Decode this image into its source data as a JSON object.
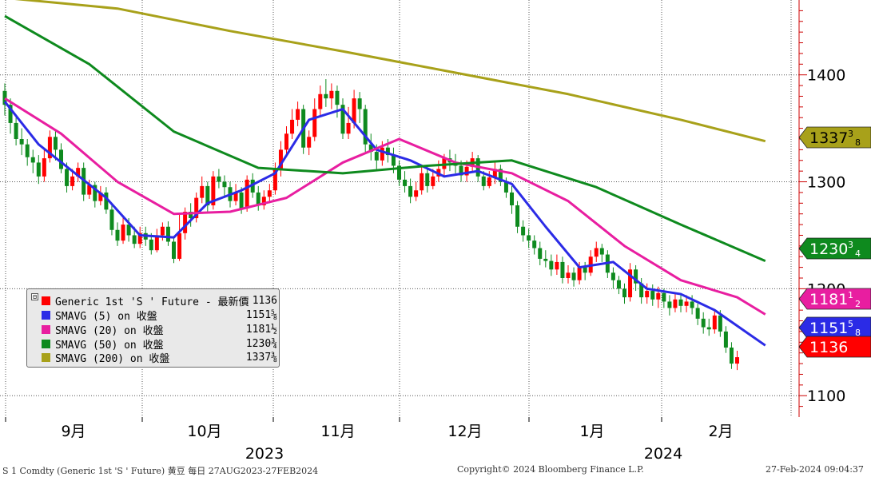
{
  "chart_data": {
    "type": "candlestick",
    "title": "",
    "x_labels": [
      "9月",
      "10月",
      "11月",
      "12月",
      "1月",
      "2月"
    ],
    "year_labels": [
      "2023",
      "2024"
    ],
    "y_ticks": [
      "1400",
      "1300",
      "1200",
      "1100"
    ],
    "y_tick_values": [
      1400,
      1300,
      1200,
      1100
    ],
    "ylim": [
      1080,
      1470
    ],
    "grid": true,
    "legend_position": "bottom-left",
    "candles": [
      [
        1385,
        1372,
        1392,
        1362
      ],
      [
        1372,
        1355,
        1378,
        1345
      ],
      [
        1355,
        1340,
        1360,
        1334
      ],
      [
        1340,
        1335,
        1350,
        1325
      ],
      [
        1335,
        1323,
        1340,
        1315
      ],
      [
        1323,
        1318,
        1330,
        1308
      ],
      [
        1318,
        1305,
        1325,
        1298
      ],
      [
        1305,
        1322,
        1330,
        1300
      ],
      [
        1322,
        1342,
        1348,
        1318
      ],
      [
        1342,
        1330,
        1348,
        1320
      ],
      [
        1330,
        1312,
        1336,
        1308
      ],
      [
        1312,
        1296,
        1318,
        1290
      ],
      [
        1296,
        1305,
        1312,
        1292
      ],
      [
        1305,
        1313,
        1318,
        1300
      ],
      [
        1313,
        1288,
        1318,
        1282
      ],
      [
        1288,
        1297,
        1302,
        1284
      ],
      [
        1297,
        1282,
        1300,
        1276
      ],
      [
        1282,
        1290,
        1296,
        1278
      ],
      [
        1290,
        1274,
        1295,
        1270
      ],
      [
        1274,
        1255,
        1279,
        1250
      ],
      [
        1255,
        1245,
        1262,
        1240
      ],
      [
        1245,
        1260,
        1268,
        1242
      ],
      [
        1260,
        1250,
        1266,
        1244
      ],
      [
        1250,
        1242,
        1258,
        1238
      ],
      [
        1242,
        1252,
        1258,
        1238
      ],
      [
        1252,
        1246,
        1258,
        1240
      ],
      [
        1246,
        1236,
        1252,
        1232
      ],
      [
        1236,
        1250,
        1256,
        1234
      ],
      [
        1250,
        1258,
        1262,
        1245
      ],
      [
        1258,
        1244,
        1263,
        1240
      ],
      [
        1244,
        1228,
        1248,
        1224
      ],
      [
        1228,
        1252,
        1270,
        1226
      ],
      [
        1252,
        1272,
        1276,
        1246
      ],
      [
        1272,
        1266,
        1280,
        1258
      ],
      [
        1266,
        1285,
        1290,
        1262
      ],
      [
        1285,
        1296,
        1305,
        1280
      ],
      [
        1296,
        1278,
        1300,
        1272
      ],
      [
        1278,
        1305,
        1310,
        1274
      ],
      [
        1305,
        1300,
        1312,
        1294
      ],
      [
        1300,
        1295,
        1306,
        1285
      ],
      [
        1295,
        1282,
        1300,
        1276
      ],
      [
        1282,
        1290,
        1298,
        1278
      ],
      [
        1290,
        1275,
        1295,
        1270
      ],
      [
        1275,
        1302,
        1306,
        1272
      ],
      [
        1302,
        1290,
        1308,
        1285
      ],
      [
        1290,
        1278,
        1296,
        1273
      ],
      [
        1278,
        1286,
        1292,
        1274
      ],
      [
        1286,
        1292,
        1298,
        1280
      ],
      [
        1292,
        1312,
        1318,
        1288
      ],
      [
        1312,
        1330,
        1338,
        1305
      ],
      [
        1330,
        1345,
        1352,
        1325
      ],
      [
        1345,
        1358,
        1368,
        1340
      ],
      [
        1358,
        1368,
        1375,
        1352
      ],
      [
        1368,
        1332,
        1372,
        1326
      ],
      [
        1332,
        1342,
        1348,
        1325
      ],
      [
        1342,
        1368,
        1378,
        1338
      ],
      [
        1368,
        1382,
        1390,
        1362
      ],
      [
        1382,
        1378,
        1396,
        1370
      ],
      [
        1378,
        1385,
        1392,
        1368
      ],
      [
        1385,
        1372,
        1390,
        1360
      ],
      [
        1372,
        1345,
        1378,
        1340
      ],
      [
        1345,
        1355,
        1370,
        1340
      ],
      [
        1355,
        1378,
        1386,
        1350
      ],
      [
        1378,
        1368,
        1384,
        1355
      ],
      [
        1368,
        1335,
        1372,
        1328
      ],
      [
        1335,
        1328,
        1345,
        1320
      ],
      [
        1328,
        1320,
        1335,
        1312
      ],
      [
        1320,
        1332,
        1338,
        1315
      ],
      [
        1332,
        1325,
        1340,
        1318
      ],
      [
        1325,
        1315,
        1332,
        1308
      ],
      [
        1315,
        1302,
        1320,
        1296
      ],
      [
        1302,
        1296,
        1310,
        1290
      ],
      [
        1296,
        1286,
        1303,
        1280
      ],
      [
        1286,
        1292,
        1300,
        1282
      ],
      [
        1292,
        1308,
        1315,
        1288
      ],
      [
        1308,
        1296,
        1312,
        1290
      ],
      [
        1296,
        1305,
        1312,
        1293
      ],
      [
        1305,
        1312,
        1320,
        1300
      ],
      [
        1312,
        1322,
        1326,
        1305
      ],
      [
        1322,
        1318,
        1330,
        1310
      ],
      [
        1318,
        1315,
        1326,
        1308
      ],
      [
        1315,
        1306,
        1320,
        1300
      ],
      [
        1306,
        1314,
        1320,
        1300
      ],
      [
        1314,
        1322,
        1328,
        1310
      ],
      [
        1322,
        1305,
        1325,
        1300
      ],
      [
        1305,
        1296,
        1310,
        1292
      ],
      [
        1296,
        1304,
        1310,
        1294
      ],
      [
        1304,
        1312,
        1318,
        1298
      ],
      [
        1312,
        1300,
        1316,
        1296
      ],
      [
        1300,
        1290,
        1304,
        1285
      ],
      [
        1290,
        1278,
        1296,
        1270
      ],
      [
        1278,
        1258,
        1282,
        1252
      ],
      [
        1258,
        1250,
        1264,
        1244
      ],
      [
        1250,
        1245,
        1256,
        1238
      ],
      [
        1245,
        1238,
        1250,
        1232
      ],
      [
        1238,
        1228,
        1244,
        1222
      ],
      [
        1228,
        1226,
        1236,
        1220
      ],
      [
        1226,
        1218,
        1232,
        1212
      ],
      [
        1218,
        1225,
        1232,
        1213
      ],
      [
        1225,
        1210,
        1230,
        1205
      ],
      [
        1210,
        1215,
        1222,
        1205
      ],
      [
        1215,
        1208,
        1220,
        1202
      ],
      [
        1208,
        1220,
        1225,
        1204
      ],
      [
        1220,
        1215,
        1225,
        1208
      ],
      [
        1215,
        1230,
        1236,
        1212
      ],
      [
        1230,
        1238,
        1244,
        1225
      ],
      [
        1238,
        1232,
        1242,
        1225
      ],
      [
        1232,
        1215,
        1236,
        1210
      ],
      [
        1215,
        1208,
        1220,
        1200
      ],
      [
        1208,
        1200,
        1212,
        1195
      ],
      [
        1200,
        1192,
        1205,
        1186
      ],
      [
        1192,
        1218,
        1224,
        1188
      ],
      [
        1218,
        1205,
        1222,
        1198
      ],
      [
        1205,
        1192,
        1210,
        1186
      ],
      [
        1192,
        1198,
        1205,
        1186
      ],
      [
        1198,
        1190,
        1204,
        1184
      ],
      [
        1190,
        1196,
        1202,
        1182
      ],
      [
        1196,
        1188,
        1200,
        1182
      ],
      [
        1188,
        1182,
        1194,
        1175
      ],
      [
        1182,
        1190,
        1196,
        1178
      ],
      [
        1190,
        1184,
        1196,
        1178
      ],
      [
        1184,
        1188,
        1194,
        1178
      ],
      [
        1188,
        1182,
        1194,
        1176
      ],
      [
        1182,
        1172,
        1186,
        1166
      ],
      [
        1172,
        1164,
        1178,
        1158
      ],
      [
        1164,
        1162,
        1172,
        1156
      ],
      [
        1162,
        1175,
        1180,
        1158
      ],
      [
        1175,
        1160,
        1180,
        1155
      ],
      [
        1160,
        1145,
        1165,
        1140
      ],
      [
        1145,
        1130,
        1150,
        1125
      ],
      [
        1130,
        1136,
        1142,
        1124
      ]
    ],
    "series": [
      {
        "name": "Generic 1st 'S ' Future - 最新價",
        "type": "candles",
        "last": "1136",
        "last_value": 1136,
        "color": "#ff0000"
      },
      {
        "name": "SMAVG (5)  on 收盤",
        "type": "line",
        "last": "1151⅝",
        "last_value": 1151.6,
        "color": "#2b2be6",
        "x": [
          0,
          6,
          12,
          18,
          24,
          30,
          36,
          42,
          48,
          54,
          60,
          66,
          72,
          78,
          84,
          90,
          96,
          102,
          108,
          114,
          120,
          126,
          132,
          135
        ],
        "values": [
          1375,
          1335,
          1310,
          1285,
          1250,
          1248,
          1280,
          1292,
          1308,
          1358,
          1368,
          1330,
          1320,
          1305,
          1310,
          1298,
          1258,
          1220,
          1225,
          1200,
          1195,
          1180,
          1158,
          1147
        ]
      },
      {
        "name": "SMAVG (20)  on 收盤",
        "type": "line",
        "last": "1181½",
        "last_value": 1181.5,
        "color": "#e81ea0",
        "x": [
          0,
          10,
          20,
          30,
          40,
          50,
          60,
          70,
          80,
          90,
          100,
          110,
          120,
          130,
          135
        ],
        "values": [
          1378,
          1345,
          1300,
          1270,
          1272,
          1285,
          1318,
          1340,
          1318,
          1308,
          1282,
          1240,
          1208,
          1192,
          1176
        ]
      },
      {
        "name": "SMAVG (50)  on 收盤",
        "type": "line",
        "last": "1230¾",
        "last_value": 1230.75,
        "color": "#0e8a1e",
        "x": [
          0,
          15,
          30,
          45,
          60,
          75,
          90,
          105,
          120,
          135
        ],
        "values": [
          1455,
          1410,
          1347,
          1313,
          1308,
          1315,
          1320,
          1295,
          1260,
          1226
        ]
      },
      {
        "name": "SMAVG (200)  on 收盤",
        "type": "line",
        "last": "1337⅜",
        "last_value": 1337.375,
        "color": "#a8a11a",
        "x": [
          0,
          20,
          40,
          60,
          80,
          100,
          120,
          135
        ],
        "values": [
          1472,
          1462,
          1441,
          1422,
          1402,
          1382,
          1358,
          1338
        ]
      }
    ],
    "price_tags": [
      {
        "label": "1337",
        "frac": "3",
        "denom": "8",
        "value": 1337.375,
        "bg": "#a8a11a",
        "fg": "#000000"
      },
      {
        "label": "1230",
        "frac": "3",
        "denom": "4",
        "value": 1230.75,
        "bg": "#0e8a1e",
        "fg": "#ffffff"
      },
      {
        "label": "1181",
        "frac": "1",
        "denom": "2",
        "value": 1181.5,
        "bg": "#e81ea0",
        "fg": "#ffffff"
      },
      {
        "label": "1151",
        "frac": "5",
        "denom": "8",
        "value": 1151.6,
        "bg": "#2b2be6",
        "fg": "#ffffff"
      },
      {
        "label": "1136",
        "frac": "",
        "denom": "",
        "value": 1136,
        "bg": "#ff0000",
        "fg": "#ffffff"
      }
    ]
  },
  "legend": {
    "collapse_glyph": "⊟",
    "rows": [
      {
        "name": "Generic 1st 'S ' Future - 最新價",
        "value": "1136",
        "color": "#ff0000"
      },
      {
        "name": "SMAVG (5)  on 收盤",
        "value": "1151⅝",
        "color": "#2b2be6"
      },
      {
        "name": "SMAVG (20)  on 收盤",
        "value": "1181½",
        "color": "#e81ea0"
      },
      {
        "name": "SMAVG (50)  on 收盤",
        "value": "1230¾",
        "color": "#0e8a1e"
      },
      {
        "name": "SMAVG (200)  on 收盤",
        "value": "1337⅜",
        "color": "#a8a11a"
      }
    ]
  },
  "footer": {
    "left": "S 1 Comdty (Generic 1st 'S ' Future) 黄豆  每日 27AUG2023-27FEB2024",
    "center": "Copyright© 2024 Bloomberg Finance L.P.",
    "right": "27-Feb-2024 09:04:37"
  },
  "colors": {
    "up": "#ff0000",
    "down": "#0e8a1e",
    "grid": "#555555",
    "axis": "#cc0000"
  }
}
